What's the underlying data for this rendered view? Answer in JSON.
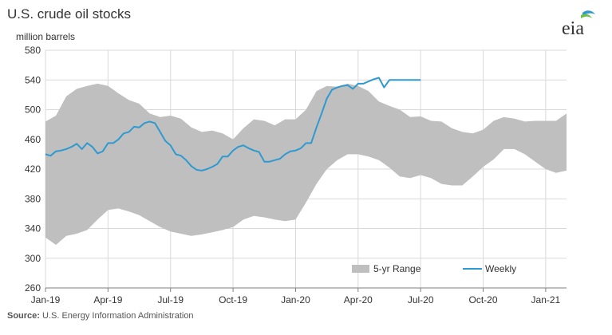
{
  "title": "U.S. crude oil stocks",
  "units": "million barrels",
  "source_label": "Source:",
  "source_text": " U.S. Energy Information Administration",
  "logo_text": "eia",
  "colors": {
    "range": "#bfbfbf",
    "weekly": "#2e9ad0",
    "grid": "#d9d9d9",
    "axis": "#7f7f7f"
  },
  "chart_data": {
    "type": "area",
    "ylim": [
      260,
      580
    ],
    "yticks": [
      260,
      300,
      340,
      380,
      420,
      460,
      500,
      540,
      580
    ],
    "xlim": [
      0,
      25
    ],
    "xticks": [
      {
        "pos": 0,
        "label": "Jan-19"
      },
      {
        "pos": 3,
        "label": "Apr-19"
      },
      {
        "pos": 6,
        "label": "Jul-19"
      },
      {
        "pos": 9,
        "label": "Oct-19"
      },
      {
        "pos": 12,
        "label": "Jan-20"
      },
      {
        "pos": 15,
        "label": "Apr-20"
      },
      {
        "pos": 18,
        "label": "Jul-20"
      },
      {
        "pos": 21,
        "label": "Oct-20"
      },
      {
        "pos": 24,
        "label": "Jan-21"
      }
    ],
    "grid": true,
    "legend": {
      "position": "bottom-right",
      "entries": [
        "5-yr Range",
        "Weekly"
      ]
    },
    "series": [
      {
        "name": "5-yr Range",
        "type": "range",
        "x": [
          0,
          0.5,
          1,
          1.5,
          2,
          2.5,
          3,
          3.5,
          4,
          4.5,
          5,
          5.5,
          6,
          6.5,
          7,
          7.5,
          8,
          8.5,
          9,
          9.5,
          10,
          10.5,
          11,
          11.5,
          12,
          12.5,
          13,
          13.5,
          14,
          14.5,
          15,
          15.5,
          16,
          16.5,
          17,
          17.5,
          18,
          18.5,
          19,
          19.5,
          20,
          20.5,
          21,
          21.5,
          22,
          22.5,
          23,
          23.5,
          24,
          24.5,
          25
        ],
        "upper": [
          484,
          492,
          518,
          528,
          532,
          535,
          532,
          522,
          513,
          508,
          495,
          490,
          492,
          488,
          476,
          470,
          472,
          468,
          460,
          475,
          487,
          485,
          479,
          487,
          487,
          500,
          525,
          532,
          531,
          535,
          532,
          525,
          511,
          505,
          500,
          490,
          491,
          485,
          484,
          475,
          470,
          468,
          473,
          485,
          490,
          488,
          484,
          485,
          485,
          485,
          495
        ],
        "lower": [
          328,
          318,
          330,
          333,
          338,
          352,
          365,
          367,
          363,
          358,
          350,
          342,
          336,
          333,
          330,
          332,
          335,
          338,
          342,
          352,
          357,
          355,
          352,
          350,
          352,
          375,
          400,
          420,
          432,
          440,
          440,
          437,
          432,
          422,
          410,
          408,
          412,
          408,
          400,
          398,
          398,
          410,
          423,
          433,
          447,
          447,
          440,
          430,
          420,
          415,
          418
        ]
      },
      {
        "name": "Weekly",
        "type": "line",
        "x": [
          0,
          0.25,
          0.5,
          0.75,
          1,
          1.25,
          1.5,
          1.75,
          2,
          2.25,
          2.5,
          2.75,
          3,
          3.25,
          3.5,
          3.75,
          4,
          4.25,
          4.5,
          4.75,
          5,
          5.25,
          5.5,
          5.75,
          6,
          6.25,
          6.5,
          6.75,
          7,
          7.25,
          7.5,
          7.75,
          8,
          8.25,
          8.5,
          8.75,
          9,
          9.25,
          9.5,
          9.75,
          10,
          10.25,
          10.5,
          10.75,
          11,
          11.25,
          11.5,
          11.75,
          12,
          12.25,
          12.5,
          12.75,
          13,
          13.25,
          13.5,
          13.75,
          14,
          14.25,
          14.5,
          14.75,
          15,
          15.25,
          15.5,
          15.75,
          16,
          16.25,
          16.5,
          16.75,
          17,
          17.25,
          17.5,
          17.75,
          18
        ],
        "values": [
          440,
          438,
          444,
          445,
          447,
          450,
          454,
          447,
          455,
          450,
          441,
          444,
          455,
          455,
          460,
          468,
          470,
          477,
          476,
          482,
          484,
          482,
          470,
          458,
          452,
          440,
          438,
          432,
          424,
          419,
          418,
          420,
          423,
          427,
          437,
          437,
          445,
          450,
          452,
          448,
          445,
          443,
          430,
          430,
          432,
          434,
          440,
          444,
          445,
          448,
          455,
          455,
          476,
          495,
          515,
          527,
          530,
          532,
          533,
          528,
          535,
          535,
          538,
          541,
          543,
          530,
          540,
          540,
          540,
          540,
          540,
          540,
          540
        ]
      }
    ]
  }
}
